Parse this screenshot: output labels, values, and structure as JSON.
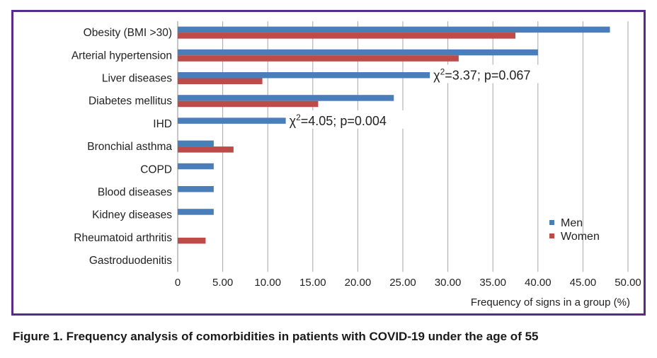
{
  "caption": "Figure 1. Frequency analysis of comorbidities in patients with COVID-19 under the age of 55",
  "colors": {
    "men": "#4a7ebb",
    "women": "#be4b48",
    "frame": "#5b2a86"
  },
  "chart_data": {
    "type": "bar",
    "orientation": "horizontal",
    "categories": [
      "Obesity (BMI >30)",
      "Arterial hypertension",
      "Liver diseases",
      "Diabetes mellitus",
      "IHD",
      "Bronchial asthma",
      "COPD",
      "Blood diseases",
      "Kidney diseases",
      "Rheumatoid arthritis",
      "Gastroduodenitis"
    ],
    "series": [
      {
        "name": "Men",
        "values": [
          48,
          40,
          28,
          24,
          12,
          4,
          4,
          4,
          4,
          0,
          0
        ]
      },
      {
        "name": "Women",
        "values": [
          37.5,
          31.2,
          9.4,
          15.6,
          0,
          6.2,
          0,
          0,
          0,
          3.1,
          0
        ]
      }
    ],
    "xlabel": "Frequency of signs in a group (%)",
    "xlim": [
      0,
      50
    ],
    "xticks": [
      "0",
      "5.00",
      "10.00",
      "15.00",
      "20.00",
      "25.00",
      "30.00",
      "35.00",
      "40.00",
      "45.00",
      "50.00"
    ],
    "grid": "vertical",
    "legend_position": "right",
    "annotations": [
      {
        "category": "Liver diseases",
        "chi": "χ",
        "sup": "2",
        "rest": "=3.37; p=0.067"
      },
      {
        "category": "IHD",
        "chi": "χ",
        "sup": "2",
        "rest": "=4.05; p=0.004"
      }
    ]
  }
}
